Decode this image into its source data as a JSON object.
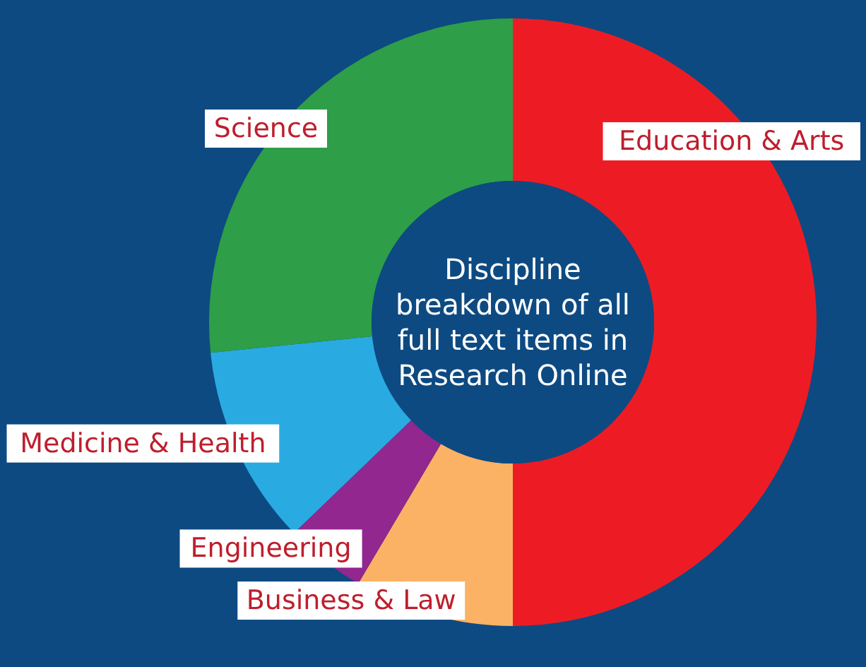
{
  "chart_data": {
    "type": "donut",
    "title": "Discipline breakdown of all full text items in Research Online",
    "categories": [
      "Education & Arts",
      "Business & Law",
      "Engineering",
      "Medicine & Health",
      "Science"
    ],
    "values": [
      50,
      8.5,
      4.3,
      10.6,
      26.6
    ],
    "colors": [
      "#ed1c24",
      "#fbb265",
      "#92278f",
      "#29abe2",
      "#2e9e48"
    ]
  }
}
